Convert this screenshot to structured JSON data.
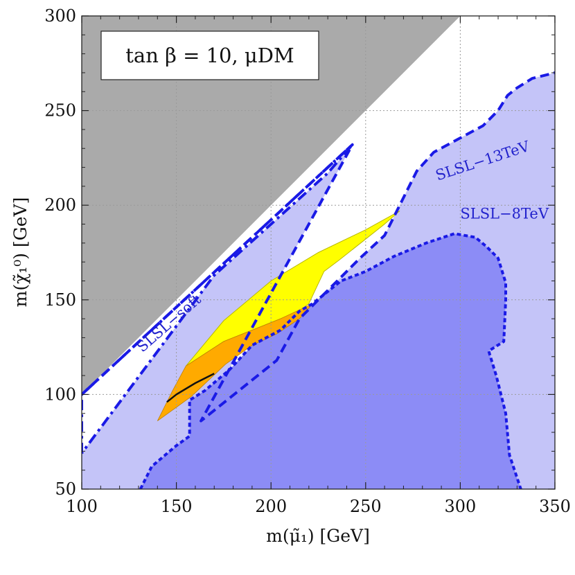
{
  "chart_data": {
    "type": "area",
    "title": "tan β = 10,  μDM",
    "xlabel": "m(μ̃₁) [GeV]",
    "ylabel": "m(χ̃₁⁰) [GeV]",
    "xlim": [
      100,
      350
    ],
    "ylim": [
      50,
      300
    ],
    "x_ticks": [
      100,
      150,
      200,
      250,
      300,
      350
    ],
    "y_ticks": [
      50,
      100,
      150,
      200,
      250,
      300
    ],
    "grid": true,
    "colors": {
      "excluded_lsp": "#aaaaaa",
      "slsl_13tev_fill": "#c4c4f8",
      "slsl_8tev_fill": "#8c8cf6",
      "yellow": "#ffff00",
      "orange": "#ffaa00",
      "contour": "#1a1ae6",
      "label": "#2222cc"
    },
    "series": [
      {
        "name": "SLSL−13TeV",
        "style": "dashed",
        "points": [
          [
            100,
            50
          ],
          [
            100,
            100
          ],
          [
            243,
            232
          ],
          [
            163,
            86
          ],
          [
            203,
            118
          ],
          [
            215,
            140
          ],
          [
            233,
            158
          ],
          [
            247,
            172
          ],
          [
            260,
            184
          ],
          [
            277,
            218
          ],
          [
            286,
            228
          ],
          [
            312,
            242
          ],
          [
            320,
            250
          ],
          [
            325,
            258
          ],
          [
            330,
            262
          ],
          [
            338,
            267
          ],
          [
            350,
            270
          ],
          [
            350,
            50
          ]
        ]
      },
      {
        "name": "SLSL−8TeV",
        "style": "dotted",
        "points": [
          [
            131,
            50
          ],
          [
            137,
            62
          ],
          [
            150,
            73
          ],
          [
            157,
            78
          ],
          [
            157,
            97
          ],
          [
            165,
            102
          ],
          [
            178,
            113
          ],
          [
            190,
            126
          ],
          [
            205,
            134
          ],
          [
            215,
            144
          ],
          [
            222,
            148
          ],
          [
            237,
            160
          ],
          [
            250,
            165
          ],
          [
            265,
            173
          ],
          [
            282,
            180
          ],
          [
            297,
            185
          ],
          [
            308,
            183
          ],
          [
            314,
            178
          ],
          [
            320,
            172
          ],
          [
            324,
            159
          ],
          [
            324,
            150
          ],
          [
            323,
            128
          ],
          [
            315,
            123
          ],
          [
            319,
            110
          ],
          [
            324,
            90
          ],
          [
            326,
            68
          ],
          [
            332,
            50
          ]
        ]
      },
      {
        "name": "SLSL−soft",
        "style": "dash-dot",
        "points": [
          [
            100,
            69
          ],
          [
            100,
            100
          ],
          [
            243,
            232
          ],
          [
            230,
            217
          ],
          [
            170,
            163
          ],
          [
            100,
            69
          ]
        ]
      },
      {
        "name": "excluded",
        "style": "fill",
        "points": [
          [
            100,
            100
          ],
          [
            100,
            300
          ],
          [
            300,
            300
          ]
        ]
      },
      {
        "name": "yellow",
        "style": "fill",
        "points": [
          [
            155,
            115
          ],
          [
            175,
            139
          ],
          [
            200,
            160
          ],
          [
            225,
            175
          ],
          [
            250,
            187
          ],
          [
            268,
            197
          ],
          [
            260,
            190
          ],
          [
            236,
            171
          ],
          [
            228,
            165
          ],
          [
            220,
            148
          ],
          [
            215,
            144
          ],
          [
            205,
            140
          ],
          [
            175,
            128
          ],
          [
            155,
            115
          ]
        ]
      },
      {
        "name": "orange",
        "style": "fill",
        "points": [
          [
            140,
            86
          ],
          [
            148,
            102
          ],
          [
            155,
            115
          ],
          [
            175,
            128
          ],
          [
            205,
            140
          ],
          [
            222,
            148
          ],
          [
            215,
            140
          ],
          [
            203,
            132
          ],
          [
            190,
            126
          ],
          [
            176,
            116
          ],
          [
            158,
            99
          ],
          [
            140,
            86
          ]
        ]
      },
      {
        "name": "black line",
        "style": "solid",
        "points": [
          [
            145,
            96
          ],
          [
            150,
            100
          ],
          [
            160,
            106
          ],
          [
            170,
            111
          ]
        ]
      }
    ],
    "annotations": [
      {
        "text": "SLSL−soft",
        "x": 132,
        "y": 122
      },
      {
        "text": "SLSL−13TeV",
        "x": 288,
        "y": 213
      },
      {
        "text": "SLSL−8TeV",
        "x": 300,
        "y": 193
      }
    ]
  }
}
